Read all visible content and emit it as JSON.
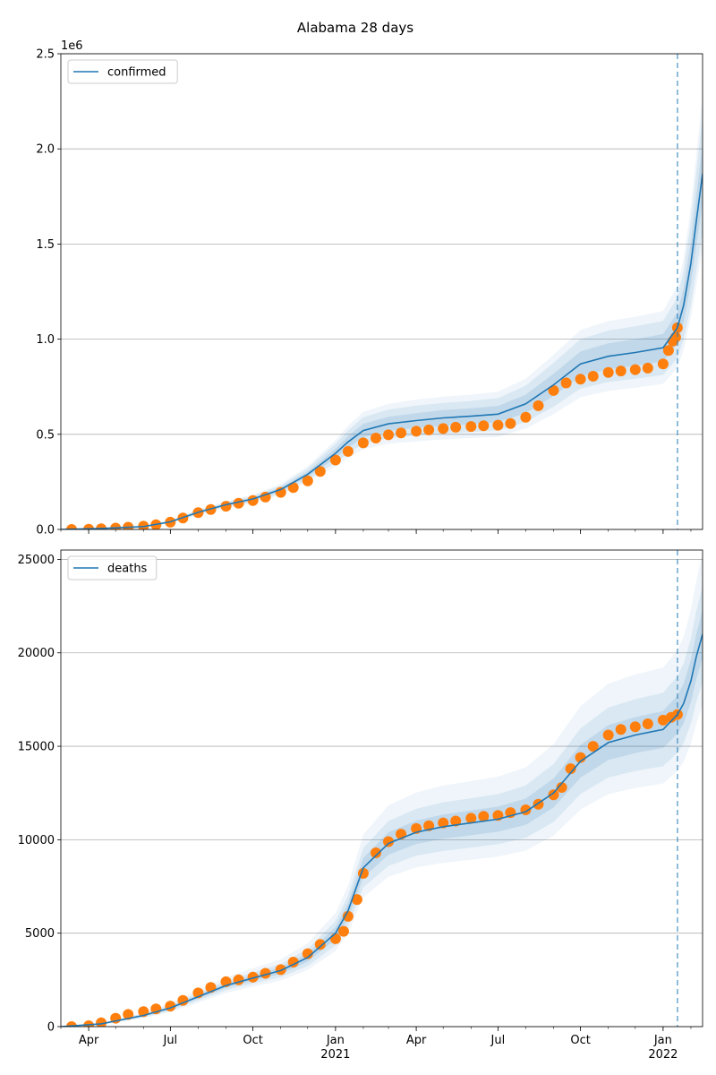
{
  "title": "Alabama 28 days",
  "colors": {
    "model": "#1f77b4",
    "observed": "#ff7f0e",
    "band": "#1f77b4",
    "grid": "#b0b0b0",
    "vline": "#1f77b4"
  },
  "chart_data": [
    {
      "type": "line",
      "name": "confirmed-panel",
      "y_offset_label": "1e6",
      "x_range": [
        "2020-03-01",
        "2022-02-14"
      ],
      "ylim": [
        0,
        2500000
      ],
      "y_ticks": [
        0,
        500000,
        1000000,
        1500000,
        2000000,
        2500000
      ],
      "y_tick_labels": [
        "0.0",
        "0.5",
        "1.0",
        "1.5",
        "2.0",
        "2.5"
      ],
      "grid": "horizontal",
      "legend": {
        "placement": "top-left",
        "label": "confirmed"
      },
      "forecast_start": "2022-01-17",
      "model": {
        "name": "confirmed",
        "x": [
          "2020-03-01",
          "2020-04-15",
          "2020-06-01",
          "2020-07-01",
          "2020-08-01",
          "2020-09-01",
          "2020-10-01",
          "2020-11-01",
          "2020-12-01",
          "2021-01-01",
          "2021-01-15",
          "2021-02-01",
          "2021-03-01",
          "2021-04-01",
          "2021-05-01",
          "2021-06-01",
          "2021-07-01",
          "2021-08-01",
          "2021-09-01",
          "2021-10-01",
          "2021-11-01",
          "2021-12-01",
          "2022-01-01",
          "2022-01-17",
          "2022-01-24",
          "2022-02-01",
          "2022-02-07",
          "2022-02-14"
        ],
        "values": [
          0,
          5000,
          15000,
          40000,
          90000,
          130000,
          160000,
          210000,
          290000,
          400000,
          460000,
          520000,
          555000,
          572000,
          586000,
          595000,
          606000,
          660000,
          760000,
          870000,
          910000,
          930000,
          955000,
          1060000,
          1180000,
          1400000,
          1620000,
          1870000
        ]
      },
      "bands": [
        {
          "lower": [
            0,
            4000,
            12000,
            34000,
            80000,
            118000,
            145000,
            190000,
            262000,
            350000,
            400000,
            450000,
            480000,
            495000,
            505000,
            512000,
            520000,
            565000,
            645000,
            740000,
            775000,
            792000,
            812000,
            900000,
            1000000,
            1180000,
            1360000,
            1560000
          ],
          "upper": [
            0,
            6000,
            18000,
            46000,
            100000,
            142000,
            175000,
            230000,
            320000,
            450000,
            520000,
            590000,
            630000,
            650000,
            665000,
            675000,
            690000,
            755000,
            875000,
            1000000,
            1045000,
            1068000,
            1095000,
            1220000,
            1360000,
            1620000,
            1880000,
            2170000
          ]
        },
        {
          "lower": [
            0,
            4500,
            13500,
            37000,
            85000,
            124000,
            152000,
            200000,
            276000,
            375000,
            430000,
            485000,
            518000,
            533000,
            545000,
            553000,
            563000,
            612000,
            702000,
            805000,
            842000,
            860000,
            883000,
            980000,
            1090000,
            1290000,
            1490000,
            1715000
          ],
          "upper": [
            0,
            5500,
            16500,
            43000,
            95000,
            136000,
            168000,
            220000,
            304000,
            425000,
            490000,
            555000,
            592000,
            611000,
            627000,
            637000,
            649000,
            708000,
            818000,
            935000,
            978000,
            1000000,
            1027000,
            1140000,
            1270000,
            1510000,
            1750000,
            2025000
          ]
        },
        {
          "lower": [
            0,
            3600,
            11000,
            31000,
            75000,
            112000,
            138000,
            180000,
            250000,
            330000,
            375000,
            422000,
            450000,
            463000,
            473000,
            480000,
            487000,
            530000,
            606000,
            695000,
            728000,
            745000,
            765000,
            850000,
            945000,
            1115000,
            1285000,
            1475000
          ],
          "upper": [
            0,
            6400,
            19000,
            49000,
            105000,
            148000,
            182000,
            240000,
            332000,
            470000,
            545000,
            618000,
            660000,
            682000,
            698000,
            708000,
            724000,
            792000,
            918000,
            1048000,
            1095000,
            1118000,
            1148000,
            1280000,
            1425000,
            1700000,
            1970000,
            2280000
          ]
        }
      ],
      "observed": {
        "name": "observed confirmed",
        "x": [
          "2020-03-13",
          "2020-04-01",
          "2020-04-15",
          "2020-05-01",
          "2020-05-15",
          "2020-06-01",
          "2020-06-15",
          "2020-07-01",
          "2020-07-15",
          "2020-08-01",
          "2020-08-15",
          "2020-09-01",
          "2020-09-15",
          "2020-10-01",
          "2020-10-15",
          "2020-11-01",
          "2020-11-15",
          "2020-12-01",
          "2020-12-15",
          "2021-01-01",
          "2021-01-15",
          "2021-02-01",
          "2021-02-15",
          "2021-03-01",
          "2021-03-15",
          "2021-04-01",
          "2021-04-15",
          "2021-05-01",
          "2021-05-15",
          "2021-06-01",
          "2021-06-15",
          "2021-07-01",
          "2021-07-15",
          "2021-08-01",
          "2021-08-15",
          "2021-09-01",
          "2021-09-15",
          "2021-10-01",
          "2021-10-15",
          "2021-11-01",
          "2021-11-15",
          "2021-12-01",
          "2021-12-15",
          "2022-01-01",
          "2022-01-07",
          "2022-01-12",
          "2022-01-15",
          "2022-01-17"
        ],
        "values": [
          0,
          1000,
          4000,
          7000,
          12000,
          17000,
          25000,
          38000,
          60000,
          88000,
          105000,
          122000,
          138000,
          152000,
          170000,
          195000,
          220000,
          255000,
          305000,
          365000,
          410000,
          455000,
          480000,
          497000,
          507000,
          516000,
          523000,
          530000,
          537000,
          541000,
          545000,
          548000,
          557000,
          590000,
          650000,
          730000,
          770000,
          790000,
          805000,
          825000,
          833000,
          840000,
          848000,
          870000,
          940000,
          990000,
          1010000,
          1060000
        ]
      },
      "x_ticks": [
        {
          "date": "2020-04-01",
          "label": "Apr",
          "year": ""
        },
        {
          "date": "2020-07-01",
          "label": "Jul",
          "year": ""
        },
        {
          "date": "2020-10-01",
          "label": "Oct",
          "year": ""
        },
        {
          "date": "2021-01-01",
          "label": "Jan",
          "year": "2021"
        },
        {
          "date": "2021-04-01",
          "label": "Apr",
          "year": ""
        },
        {
          "date": "2021-07-01",
          "label": "Jul",
          "year": ""
        },
        {
          "date": "2021-10-01",
          "label": "Oct",
          "year": ""
        },
        {
          "date": "2022-01-01",
          "label": "Jan",
          "year": "2022"
        }
      ],
      "show_x_labels": false
    },
    {
      "type": "line",
      "name": "deaths-panel",
      "y_offset_label": "",
      "x_range": [
        "2020-03-01",
        "2022-02-14"
      ],
      "ylim": [
        0,
        25500
      ],
      "y_ticks": [
        0,
        5000,
        10000,
        15000,
        20000,
        25000
      ],
      "y_tick_labels": [
        "0",
        "5000",
        "10000",
        "15000",
        "20000",
        "25000"
      ],
      "grid": "horizontal",
      "legend": {
        "placement": "top-left",
        "label": "deaths"
      },
      "forecast_start": "2022-01-17",
      "model": {
        "name": "deaths",
        "x": [
          "2020-03-01",
          "2020-04-15",
          "2020-06-01",
          "2020-07-01",
          "2020-08-01",
          "2020-09-01",
          "2020-10-01",
          "2020-11-01",
          "2020-12-01",
          "2021-01-01",
          "2021-01-15",
          "2021-02-01",
          "2021-03-01",
          "2021-04-01",
          "2021-05-01",
          "2021-06-01",
          "2021-07-01",
          "2021-08-01",
          "2021-09-01",
          "2021-10-01",
          "2021-11-01",
          "2021-12-01",
          "2022-01-01",
          "2022-01-17",
          "2022-01-24",
          "2022-02-01",
          "2022-02-07",
          "2022-02-14"
        ],
        "values": [
          0,
          150,
          600,
          1000,
          1600,
          2200,
          2600,
          3000,
          3700,
          5000,
          6200,
          8500,
          9800,
          10400,
          10700,
          10900,
          11100,
          11500,
          12500,
          14200,
          15200,
          15600,
          15900,
          16700,
          17300,
          18500,
          19800,
          21000
        ]
      },
      "bands": [
        {
          "lower": [
            0,
            120,
            500,
            850,
            1400,
            1950,
            2300,
            2650,
            3250,
            4350,
            5400,
            7450,
            8600,
            9150,
            9400,
            9580,
            9760,
            10100,
            10950,
            12450,
            13330,
            13680,
            13940,
            14650,
            15180,
            16230,
            17380,
            18430
          ],
          "upper": [
            0,
            180,
            700,
            1150,
            1800,
            2450,
            2900,
            3350,
            4150,
            5650,
            7000,
            9550,
            11000,
            11650,
            12000,
            12220,
            12440,
            12900,
            14050,
            15950,
            17070,
            17520,
            17860,
            18750,
            19420,
            20780,
            22220,
            23570
          ]
        },
        {
          "lower": [
            0,
            135,
            550,
            925,
            1500,
            2075,
            2450,
            2825,
            3475,
            4675,
            5800,
            7975,
            9200,
            9775,
            10050,
            10240,
            10430,
            10800,
            11725,
            13325,
            14265,
            14640,
            14920,
            15675,
            16240,
            17365,
            18590,
            19715
          ],
          "upper": [
            0,
            165,
            650,
            1075,
            1700,
            2325,
            2750,
            3175,
            3925,
            5325,
            6600,
            9025,
            10400,
            11025,
            11350,
            11560,
            11770,
            12200,
            13275,
            15075,
            16135,
            16560,
            16880,
            17725,
            18360,
            19635,
            21010,
            22285
          ]
        },
        {
          "lower": [
            0,
            100,
            450,
            780,
            1280,
            1800,
            2140,
            2470,
            3030,
            4050,
            5020,
            6930,
            8010,
            8520,
            8760,
            8930,
            9100,
            9420,
            10210,
            11620,
            12440,
            12770,
            13010,
            13670,
            14170,
            15150,
            16210,
            17190
          ],
          "upper": [
            0,
            200,
            760,
            1240,
            1950,
            2640,
            3120,
            3600,
            4460,
            6080,
            7540,
            10280,
            11840,
            12530,
            12900,
            13140,
            13380,
            13870,
            15110,
            17150,
            18350,
            18840,
            19200,
            20150,
            20870,
            22320,
            23870,
            25320
          ]
        }
      ],
      "observed": {
        "name": "observed deaths",
        "x": [
          "2020-03-13",
          "2020-04-01",
          "2020-04-15",
          "2020-05-01",
          "2020-05-15",
          "2020-06-01",
          "2020-06-15",
          "2020-07-01",
          "2020-07-15",
          "2020-08-01",
          "2020-08-15",
          "2020-09-01",
          "2020-09-15",
          "2020-10-01",
          "2020-10-15",
          "2020-11-01",
          "2020-11-15",
          "2020-12-01",
          "2020-12-15",
          "2021-01-01",
          "2021-01-10",
          "2021-01-15",
          "2021-01-25",
          "2021-02-01",
          "2021-02-15",
          "2021-03-01",
          "2021-03-15",
          "2021-04-01",
          "2021-04-15",
          "2021-05-01",
          "2021-05-15",
          "2021-06-01",
          "2021-06-15",
          "2021-07-01",
          "2021-07-15",
          "2021-08-01",
          "2021-08-15",
          "2021-09-01",
          "2021-09-10",
          "2021-09-20",
          "2021-10-01",
          "2021-10-15",
          "2021-11-01",
          "2021-11-15",
          "2021-12-01",
          "2021-12-15",
          "2022-01-01",
          "2022-01-10",
          "2022-01-17"
        ],
        "values": [
          0,
          50,
          200,
          450,
          650,
          800,
          950,
          1100,
          1400,
          1800,
          2100,
          2400,
          2500,
          2650,
          2850,
          3050,
          3450,
          3900,
          4400,
          4700,
          5100,
          5900,
          6800,
          8200,
          9300,
          9900,
          10300,
          10600,
          10750,
          10900,
          11000,
          11150,
          11250,
          11300,
          11450,
          11600,
          11900,
          12400,
          12800,
          13800,
          14400,
          15000,
          15600,
          15900,
          16050,
          16200,
          16400,
          16550,
          16700
        ]
      },
      "x_ticks": [
        {
          "date": "2020-04-01",
          "label": "Apr",
          "year": ""
        },
        {
          "date": "2020-07-01",
          "label": "Jul",
          "year": ""
        },
        {
          "date": "2020-10-01",
          "label": "Oct",
          "year": ""
        },
        {
          "date": "2021-01-01",
          "label": "Jan",
          "year": "2021"
        },
        {
          "date": "2021-04-01",
          "label": "Apr",
          "year": ""
        },
        {
          "date": "2021-07-01",
          "label": "Jul",
          "year": ""
        },
        {
          "date": "2021-10-01",
          "label": "Oct",
          "year": ""
        },
        {
          "date": "2022-01-01",
          "label": "Jan",
          "year": "2022"
        }
      ],
      "show_x_labels": true
    }
  ]
}
